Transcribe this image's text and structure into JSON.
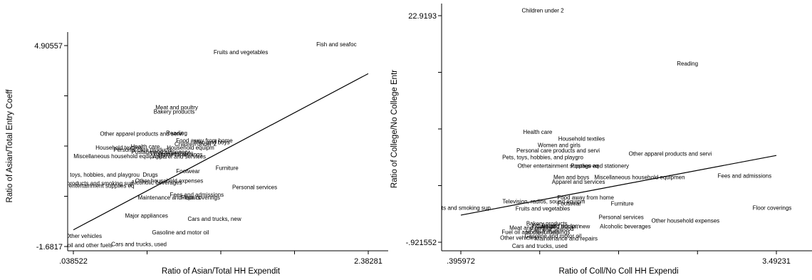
{
  "chart_data": [
    {
      "type": "scatter",
      "xlabel": "Ratio of Asian/Total HH Expendit",
      "ylabel": "Ratio of Asian/Total Entry Coeff",
      "x_ticks": [
        ".038522",
        "2.38281"
      ],
      "y_ticks": [
        "4.90557",
        "-1.6817"
      ],
      "xlim": [
        0.038522,
        2.38281
      ],
      "ylim": [
        -1.6817,
        4.90557
      ],
      "fit_line": [
        [
          0.038522,
          -1.135
        ],
        [
          2.38281,
          3.986
        ]
      ],
      "points": [
        {
          "label": "Fish and seafoc",
          "x": 2.13,
          "y": 4.95
        },
        {
          "label": "Fruits and vegetables",
          "x": 1.37,
          "y": 4.7
        },
        {
          "label": "Meat and poultry",
          "x": 0.86,
          "y": 2.88
        },
        {
          "label": "Bakery products",
          "x": 0.84,
          "y": 2.74
        },
        {
          "label": "Other apparel products and servi",
          "x": 0.58,
          "y": 2.02
        },
        {
          "label": "Reading",
          "x": 0.86,
          "y": 2.04
        },
        {
          "label": "Food away from home",
          "x": 1.08,
          "y": 1.8
        },
        {
          "label": "Children under 2",
          "x": 1.01,
          "y": 1.68
        },
        {
          "label": "Men and boys",
          "x": 1.14,
          "y": 1.74
        },
        {
          "label": "Household textiles",
          "x": 0.4,
          "y": 1.57
        },
        {
          "label": "Health care",
          "x": 0.61,
          "y": 1.6
        },
        {
          "label": "Household equipm",
          "x": 0.97,
          "y": 1.56
        },
        {
          "label": "Personal care products",
          "x": 0.59,
          "y": 1.5
        },
        {
          "label": "Postage and stationery",
          "x": 0.73,
          "y": 1.43
        },
        {
          "label": "Women and girls",
          "x": 0.82,
          "y": 1.38
        },
        {
          "label": "Home furnishings",
          "x": 0.89,
          "y": 1.34
        },
        {
          "label": "Apparel and services",
          "x": 0.88,
          "y": 1.27
        },
        {
          "label": "Miscellaneous household equipmen",
          "x": 0.4,
          "y": 1.29
        },
        {
          "label": "Footwear",
          "x": 0.95,
          "y": 0.8
        },
        {
          "label": "Furniture",
          "x": 1.26,
          "y": 0.9
        },
        {
          "label": "Pets, toys, hobbies, and playgrou",
          "x": 0.23,
          "y": 0.68
        },
        {
          "label": "Drugs",
          "x": 0.65,
          "y": 0.68
        },
        {
          "label": "Other household expenses",
          "x": 0.8,
          "y": 0.48
        },
        {
          "label": "Alcoholic beverages",
          "x": 0.7,
          "y": 0.42
        },
        {
          "label": "Tobacco products and smoking sup",
          "x": 0.16,
          "y": 0.4
        },
        {
          "label": "Other entertainment supplies eq",
          "x": 0.2,
          "y": 0.32
        },
        {
          "label": "Personal services",
          "x": 1.48,
          "y": 0.27
        },
        {
          "label": "Fees and admissions",
          "x": 1.02,
          "y": 0.02
        },
        {
          "label": "Maintenance and repairs",
          "x": 0.8,
          "y": -0.07
        },
        {
          "label": "Floor coverings",
          "x": 1.05,
          "y": -0.07
        },
        {
          "label": "Major appliances",
          "x": 0.62,
          "y": -0.67
        },
        {
          "label": "Cars and trucks, new",
          "x": 1.16,
          "y": -0.77
        },
        {
          "label": "Gasoline and motor oil",
          "x": 0.89,
          "y": -1.22
        },
        {
          "label": "Other vehicles",
          "x": 0.12,
          "y": -1.33
        },
        {
          "label": "Fuel oil and other fuels",
          "x": 0.12,
          "y": -1.64
        },
        {
          "label": "Cars and trucks, used",
          "x": 0.56,
          "y": -1.6
        }
      ]
    },
    {
      "type": "scatter",
      "xlabel": "Ratio of Coll/No Coll HH Expendi",
      "ylabel": "Ratio of College/No College Entr",
      "x_ticks": [
        ".395972",
        "3.49231"
      ],
      "y_ticks": [
        "22.9193",
        "-.921552"
      ],
      "xlim": [
        0.395972,
        3.49231
      ],
      "ylim": [
        -0.921552,
        22.9193
      ],
      "fit_line": [
        [
          0.395972,
          1.93
        ],
        [
          3.49231,
          8.21
        ]
      ],
      "points": [
        {
          "label": "Children under 2",
          "x": 1.2,
          "y": 23.5
        },
        {
          "label": "Reading",
          "x": 2.62,
          "y": 17.9
        },
        {
          "label": "Health care",
          "x": 1.15,
          "y": 10.7
        },
        {
          "label": "Household textiles",
          "x": 1.58,
          "y": 10.0
        },
        {
          "label": "Women and girls",
          "x": 1.36,
          "y": 9.3
        },
        {
          "label": "Personal care products and servi",
          "x": 1.35,
          "y": 8.75
        },
        {
          "label": "Pets, toys, hobbies, and playgro",
          "x": 1.2,
          "y": 8.05
        },
        {
          "label": "Other apparel products and servi",
          "x": 2.45,
          "y": 8.4
        },
        {
          "label": "Other entertainment supplies eq",
          "x": 1.35,
          "y": 7.15
        },
        {
          "label": "Postage and stationery",
          "x": 1.76,
          "y": 7.15
        },
        {
          "label": "Men and boys",
          "x": 1.48,
          "y": 5.95
        },
        {
          "label": "Miscellaneous household equipmen",
          "x": 2.15,
          "y": 5.95
        },
        {
          "label": "Fees and admissions",
          "x": 3.18,
          "y": 6.1
        },
        {
          "label": "Apparel and services",
          "x": 1.55,
          "y": 5.45
        },
        {
          "label": "Food away from home",
          "x": 1.62,
          "y": 3.8
        },
        {
          "label": "Television, radios, sound equipm",
          "x": 1.21,
          "y": 3.4
        },
        {
          "label": "Footwear",
          "x": 1.46,
          "y": 3.15
        },
        {
          "label": "Furniture",
          "x": 1.98,
          "y": 3.15
        },
        {
          "label": "Fruits and vegetables",
          "x": 1.2,
          "y": 2.65
        },
        {
          "label": "Tobacco products and smoking sup",
          "x": 0.25,
          "y": 2.7
        },
        {
          "label": "Floor coverings",
          "x": 3.45,
          "y": 2.7
        },
        {
          "label": "Personal services",
          "x": 1.97,
          "y": 1.75
        },
        {
          "label": "Other household expenses",
          "x": 2.6,
          "y": 1.35
        },
        {
          "label": "Bakery products",
          "x": 1.24,
          "y": 1.05
        },
        {
          "label": "Drugs",
          "x": 1.26,
          "y": 0.85
        },
        {
          "label": "Household equipm",
          "x": 1.33,
          "y": 0.8
        },
        {
          "label": "Meat and poultry",
          "x": 1.08,
          "y": 0.6
        },
        {
          "label": "Fish and seafood",
          "x": 1.29,
          "y": 0.5
        },
        {
          "label": "Cars and trucks, new",
          "x": 1.4,
          "y": 0.75
        },
        {
          "label": "Alcoholic beverages",
          "x": 2.01,
          "y": 0.75
        },
        {
          "label": "Fuel oil and other fuels",
          "x": 1.08,
          "y": 0.15
        },
        {
          "label": "Home furnishings",
          "x": 1.25,
          "y": 0.15
        },
        {
          "label": "Gasoline and motor oil",
          "x": 1.3,
          "y": -0.25
        },
        {
          "label": "Other vehicles",
          "x": 0.96,
          "y": -0.45
        },
        {
          "label": "Maintenance and repairs",
          "x": 1.43,
          "y": -0.5
        },
        {
          "label": "Cars and trucks, used",
          "x": 1.17,
          "y": -1.3
        }
      ]
    }
  ]
}
